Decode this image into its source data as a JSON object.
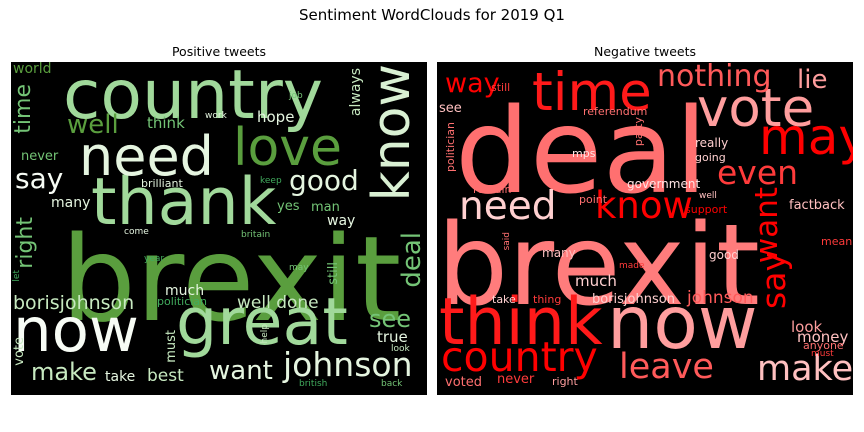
{
  "figure": {
    "title": "Sentiment WordClouds for 2019 Q1"
  },
  "chart_data": [
    {
      "type": "wordcloud",
      "title": "Positive tweets",
      "palette": [
        "#edf8e9",
        "#c7e9c0",
        "#a1d99b",
        "#74c476",
        "#41ab5d",
        "#238b45"
      ],
      "words": [
        {
          "text": "brexit",
          "weight": 100,
          "color": "#5a9e3e",
          "vertical": false
        },
        {
          "text": "country",
          "weight": 58,
          "color": "#a1d99b",
          "vertical": false
        },
        {
          "text": "thank",
          "weight": 55,
          "color": "#a1d99b",
          "vertical": false
        },
        {
          "text": "great",
          "weight": 55,
          "color": "#a1d99b",
          "vertical": false
        },
        {
          "text": "now",
          "weight": 52,
          "color": "#f7fcf5",
          "vertical": false
        },
        {
          "text": "need",
          "weight": 46,
          "color": "#e5f5e0",
          "vertical": false
        },
        {
          "text": "love",
          "weight": 44,
          "color": "#5a9e3e",
          "vertical": false
        },
        {
          "text": "know",
          "weight": 44,
          "color": "#d9f0d3",
          "vertical": true
        },
        {
          "text": "johnson",
          "weight": 28,
          "color": "#e5f5e0",
          "vertical": false
        },
        {
          "text": "good",
          "weight": 24,
          "color": "#e5f5e0",
          "vertical": false
        },
        {
          "text": "say",
          "weight": 24,
          "color": "#f7fcf5",
          "vertical": false
        },
        {
          "text": "well",
          "weight": 22,
          "color": "#5a9e3e",
          "vertical": false
        },
        {
          "text": "want",
          "weight": 22,
          "color": "#e5f5e0",
          "vertical": false
        },
        {
          "text": "deal",
          "weight": 22,
          "color": "#74c476",
          "vertical": true
        },
        {
          "text": "see",
          "weight": 20,
          "color": "#74c476",
          "vertical": false
        },
        {
          "text": "make",
          "weight": 20,
          "color": "#c7e9c0",
          "vertical": false
        },
        {
          "text": "time",
          "weight": 19,
          "color": "#74c476",
          "vertical": true
        },
        {
          "text": "right",
          "weight": 19,
          "color": "#74c476",
          "vertical": true
        },
        {
          "text": "borisjohnson",
          "weight": 16,
          "color": "#c7e9c0",
          "vertical": false
        },
        {
          "text": "well done",
          "weight": 14,
          "color": "#c7e9c0",
          "vertical": false
        },
        {
          "text": "best",
          "weight": 14,
          "color": "#c7e9c0",
          "vertical": false
        },
        {
          "text": "true",
          "weight": 13,
          "color": "#e5f5e0",
          "vertical": false
        },
        {
          "text": "think",
          "weight": 13,
          "color": "#74c476",
          "vertical": false
        },
        {
          "text": "hope",
          "weight": 13,
          "color": "#e5f5e0",
          "vertical": false
        },
        {
          "text": "always",
          "weight": 12,
          "color": "#c7e9c0",
          "vertical": true
        },
        {
          "text": "world",
          "weight": 12,
          "color": "#5a9e3e",
          "vertical": false
        },
        {
          "text": "many",
          "weight": 12,
          "color": "#e5f5e0",
          "vertical": false
        },
        {
          "text": "way",
          "weight": 12,
          "color": "#e5f5e0",
          "vertical": false
        },
        {
          "text": "much",
          "weight": 12,
          "color": "#e5f5e0",
          "vertical": false
        },
        {
          "text": "man",
          "weight": 11,
          "color": "#74c476",
          "vertical": false
        },
        {
          "text": "take",
          "weight": 12,
          "color": "#e5f5e0",
          "vertical": false
        },
        {
          "text": "must",
          "weight": 11,
          "color": "#c7e9c0",
          "vertical": true
        },
        {
          "text": "never",
          "weight": 11,
          "color": "#74c476",
          "vertical": false
        },
        {
          "text": "vote",
          "weight": 11,
          "color": "#c7e9c0",
          "vertical": true
        },
        {
          "text": "yes",
          "weight": 11,
          "color": "#74c476",
          "vertical": false
        },
        {
          "text": "still",
          "weight": 11,
          "color": "#74c476",
          "vertical": true
        },
        {
          "text": "brilliant",
          "weight": 9,
          "color": "#e5f5e0",
          "vertical": false
        },
        {
          "text": "politician",
          "weight": 9,
          "color": "#41ab5d",
          "vertical": false
        },
        {
          "text": "look",
          "weight": 8,
          "color": "#c7e9c0",
          "vertical": false
        },
        {
          "text": "come",
          "weight": 8,
          "color": "#e5f5e0",
          "vertical": false
        },
        {
          "text": "work",
          "weight": 8,
          "color": "#e5f5e0",
          "vertical": false
        },
        {
          "text": "job",
          "weight": 8,
          "color": "#74c476",
          "vertical": false
        },
        {
          "text": "keep",
          "weight": 8,
          "color": "#41ab5d",
          "vertical": false
        },
        {
          "text": "britain",
          "weight": 8,
          "color": "#74c476",
          "vertical": false
        },
        {
          "text": "year",
          "weight": 8,
          "color": "#41ab5d",
          "vertical": false
        },
        {
          "text": "may",
          "weight": 8,
          "color": "#74c476",
          "vertical": false
        },
        {
          "text": "help",
          "weight": 8,
          "color": "#c7e9c0",
          "vertical": true
        },
        {
          "text": "let",
          "weight": 8,
          "color": "#41ab5d",
          "vertical": true
        },
        {
          "text": "back",
          "weight": 8,
          "color": "#74c476",
          "vertical": false
        },
        {
          "text": "british",
          "weight": 8,
          "color": "#41ab5d",
          "vertical": false
        }
      ]
    },
    {
      "type": "wordcloud",
      "title": "Negative tweets",
      "palette": [
        "#ffe5e5",
        "#ff9e9e",
        "#ff7070",
        "#ff3b3b",
        "#ff0000",
        "#b30000"
      ],
      "words": [
        {
          "text": "deal",
          "weight": 100,
          "color": "#ff7070",
          "vertical": false
        },
        {
          "text": "brexit",
          "weight": 95,
          "color": "#ff7c7c",
          "vertical": false
        },
        {
          "text": "now",
          "weight": 62,
          "color": "#ff9e9e",
          "vertical": false
        },
        {
          "text": "think",
          "weight": 55,
          "color": "#ff1a1a",
          "vertical": false
        },
        {
          "text": "time",
          "weight": 45,
          "color": "#ff1a1a",
          "vertical": false
        },
        {
          "text": "vote",
          "weight": 45,
          "color": "#ff9e9e",
          "vertical": false
        },
        {
          "text": "may",
          "weight": 42,
          "color": "#ff0000",
          "vertical": false
        },
        {
          "text": "country",
          "weight": 35,
          "color": "#ff0000",
          "vertical": false
        },
        {
          "text": "need",
          "weight": 33,
          "color": "#ffd0d0",
          "vertical": false
        },
        {
          "text": "know",
          "weight": 31,
          "color": "#ff0000",
          "vertical": false
        },
        {
          "text": "make",
          "weight": 30,
          "color": "#ffc0c0",
          "vertical": false
        },
        {
          "text": "leave",
          "weight": 30,
          "color": "#ff5a5a",
          "vertical": false
        },
        {
          "text": "even",
          "weight": 28,
          "color": "#ff3b3b",
          "vertical": false
        },
        {
          "text": "say",
          "weight": 28,
          "color": "#ff0000",
          "vertical": true
        },
        {
          "text": "want",
          "weight": 26,
          "color": "#ff0000",
          "vertical": true
        },
        {
          "text": "nothing",
          "weight": 25,
          "color": "#ff5a5a",
          "vertical": false
        },
        {
          "text": "way",
          "weight": 23,
          "color": "#ff0000",
          "vertical": false
        },
        {
          "text": "lie",
          "weight": 22,
          "color": "#ff9e9e",
          "vertical": false
        },
        {
          "text": "johnson",
          "weight": 14,
          "color": "#ff5a5a",
          "vertical": false
        },
        {
          "text": "money",
          "weight": 13,
          "color": "#ffc0c0",
          "vertical": false
        },
        {
          "text": "much",
          "weight": 13,
          "color": "#ffd0d0",
          "vertical": false
        },
        {
          "text": "look",
          "weight": 13,
          "color": "#ff9e9e",
          "vertical": false
        },
        {
          "text": "factback",
          "weight": 11,
          "color": "#ffc0c0",
          "vertical": false
        },
        {
          "text": "borisjohnson",
          "weight": 11,
          "color": "#ffd0d0",
          "vertical": false
        },
        {
          "text": "really",
          "weight": 10,
          "color": "#ffd0d0",
          "vertical": false
        },
        {
          "text": "voted",
          "weight": 11,
          "color": "#ff7070",
          "vertical": false
        },
        {
          "text": "never",
          "weight": 11,
          "color": "#ff3b3b",
          "vertical": false
        },
        {
          "text": "see",
          "weight": 11,
          "color": "#ffc0c0",
          "vertical": false
        },
        {
          "text": "good",
          "weight": 10,
          "color": "#ffd0d0",
          "vertical": false
        },
        {
          "text": "many",
          "weight": 10,
          "color": "#ffc0c0",
          "vertical": false
        },
        {
          "text": "government",
          "weight": 10,
          "color": "#ffe5e5",
          "vertical": false
        },
        {
          "text": "referendum",
          "weight": 9,
          "color": "#ff7070",
          "vertical": false
        },
        {
          "text": "going",
          "weight": 9,
          "color": "#ffd0d0",
          "vertical": false
        },
        {
          "text": "take",
          "weight": 9,
          "color": "#ffd0d0",
          "vertical": false
        },
        {
          "text": "point",
          "weight": 9,
          "color": "#ff7070",
          "vertical": false
        },
        {
          "text": "remain",
          "weight": 9,
          "color": "#ff7070",
          "vertical": false
        },
        {
          "text": "right",
          "weight": 9,
          "color": "#ff9e9e",
          "vertical": false
        },
        {
          "text": "thing",
          "weight": 9,
          "color": "#ff3b3b",
          "vertical": false
        },
        {
          "text": "still",
          "weight": 9,
          "color": "#ff3b3b",
          "vertical": false
        },
        {
          "text": "mps",
          "weight": 9,
          "color": "#ffe5e5",
          "vertical": false
        },
        {
          "text": "politician",
          "weight": 9,
          "color": "#ff7070",
          "vertical": true
        },
        {
          "text": "party",
          "weight": 9,
          "color": "#ff7070",
          "vertical": true
        },
        {
          "text": "support",
          "weight": 9,
          "color": "#ff0000",
          "vertical": false
        },
        {
          "text": "anyone",
          "weight": 9,
          "color": "#ff7070",
          "vertical": false
        },
        {
          "text": "mean",
          "weight": 9,
          "color": "#ff3b3b",
          "vertical": false
        },
        {
          "text": "made",
          "weight": 8,
          "color": "#ff3b3b",
          "vertical": false
        },
        {
          "text": "must",
          "weight": 8,
          "color": "#ff3b3b",
          "vertical": false
        },
        {
          "text": "said",
          "weight": 8,
          "color": "#ff7070",
          "vertical": true
        },
        {
          "text": "well",
          "weight": 8,
          "color": "#ffc0c0",
          "vertical": false
        }
      ]
    }
  ]
}
